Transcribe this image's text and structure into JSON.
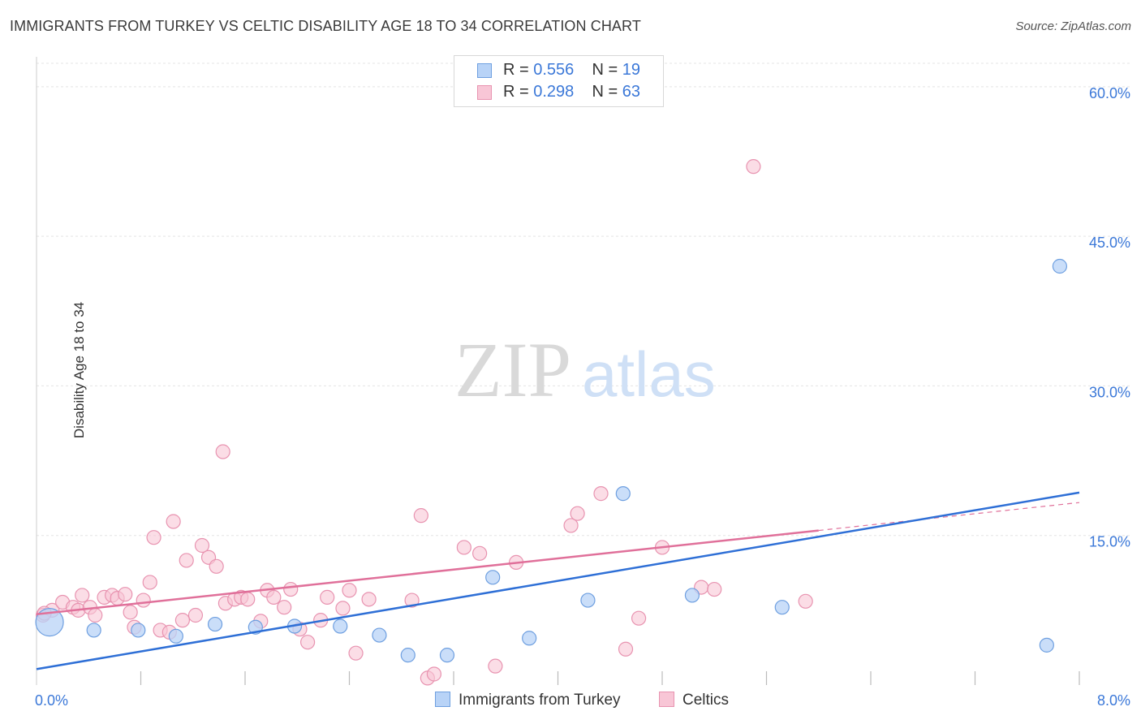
{
  "title": "IMMIGRANTS FROM TURKEY VS CELTIC DISABILITY AGE 18 TO 34 CORRELATION CHART",
  "source": "Source: ZipAtlas.com",
  "watermark": {
    "zip": "ZIP",
    "atlas": "atlas"
  },
  "colors": {
    "turkey_fill": "#b8d3f7",
    "turkey_stroke": "#6e9fe0",
    "turkey_line": "#2e6fd6",
    "celtic_fill": "#f8c6d6",
    "celtic_stroke": "#e893b0",
    "celtic_line": "#e0709a",
    "tick_label": "#3b78d8",
    "grid": "#e4e4e4"
  },
  "legend": {
    "turkey": {
      "r_label": "R = ",
      "r_value": "0.556",
      "n_label": "N = ",
      "n_value": "19"
    },
    "celtic": {
      "r_label": "R = ",
      "r_value": "0.298",
      "n_label": "N = ",
      "n_value": "63"
    }
  },
  "chart_data": {
    "type": "scatter",
    "title": "IMMIGRANTS FROM TURKEY VS CELTIC DISABILITY AGE 18 TO 34 CORRELATION CHART",
    "xlabel": "",
    "ylabel": "Disability Age 18 to 34",
    "xlim": [
      0,
      8
    ],
    "ylim": [
      0,
      63
    ],
    "x_tick_labels": [
      "0.0%",
      "8.0%"
    ],
    "y_ticks": [
      15,
      30,
      45,
      60
    ],
    "y_tick_labels": [
      "15.0%",
      "30.0%",
      "45.0%",
      "60.0%"
    ],
    "grid": "horizontal dashed",
    "legend_position": "top-center",
    "series": [
      {
        "name": "Immigrants from Turkey",
        "points": [
          [
            0.1,
            6.3
          ],
          [
            0.44,
            5.5
          ],
          [
            0.78,
            5.5
          ],
          [
            1.07,
            4.9
          ],
          [
            1.37,
            6.1
          ],
          [
            1.68,
            5.8
          ],
          [
            1.98,
            5.9
          ],
          [
            2.33,
            5.9
          ],
          [
            2.63,
            5.0
          ],
          [
            2.85,
            3.0
          ],
          [
            3.15,
            3.0
          ],
          [
            3.5,
            10.8
          ],
          [
            3.78,
            4.7
          ],
          [
            4.23,
            8.5
          ],
          [
            4.5,
            19.2
          ],
          [
            5.03,
            9.0
          ],
          [
            5.72,
            7.8
          ],
          [
            7.75,
            4.0
          ],
          [
            7.85,
            42.0
          ]
        ],
        "trend": {
          "x0": 0.0,
          "y0": 1.6,
          "x1": 8.0,
          "y1": 19.3
        }
      },
      {
        "name": "Celtics",
        "points": [
          [
            0.05,
            7.0
          ],
          [
            0.12,
            7.5
          ],
          [
            0.2,
            8.3
          ],
          [
            0.28,
            7.8
          ],
          [
            0.32,
            7.5
          ],
          [
            0.35,
            9.0
          ],
          [
            0.41,
            7.8
          ],
          [
            0.45,
            7.0
          ],
          [
            0.52,
            8.8
          ],
          [
            0.58,
            9.0
          ],
          [
            0.62,
            8.7
          ],
          [
            0.68,
            9.1
          ],
          [
            0.72,
            7.3
          ],
          [
            0.75,
            5.8
          ],
          [
            0.82,
            8.5
          ],
          [
            0.87,
            10.3
          ],
          [
            0.9,
            14.8
          ],
          [
            0.95,
            5.5
          ],
          [
            1.02,
            5.3
          ],
          [
            1.05,
            16.4
          ],
          [
            1.12,
            6.5
          ],
          [
            1.15,
            12.5
          ],
          [
            1.22,
            7.0
          ],
          [
            1.27,
            14.0
          ],
          [
            1.32,
            12.8
          ],
          [
            1.38,
            11.9
          ],
          [
            1.43,
            23.4
          ],
          [
            1.45,
            8.2
          ],
          [
            1.52,
            8.6
          ],
          [
            1.57,
            8.8
          ],
          [
            1.62,
            8.6
          ],
          [
            1.72,
            6.4
          ],
          [
            1.77,
            9.5
          ],
          [
            1.82,
            8.8
          ],
          [
            1.9,
            7.8
          ],
          [
            1.95,
            9.6
          ],
          [
            2.02,
            5.6
          ],
          [
            2.08,
            4.3
          ],
          [
            2.18,
            6.5
          ],
          [
            2.23,
            8.8
          ],
          [
            2.35,
            7.7
          ],
          [
            2.4,
            9.5
          ],
          [
            2.45,
            3.2
          ],
          [
            2.55,
            8.6
          ],
          [
            2.88,
            8.5
          ],
          [
            2.95,
            17.0
          ],
          [
            3.0,
            0.7
          ],
          [
            3.05,
            1.1
          ],
          [
            3.28,
            13.8
          ],
          [
            3.4,
            13.2
          ],
          [
            3.52,
            1.9
          ],
          [
            3.68,
            12.3
          ],
          [
            4.1,
            16.0
          ],
          [
            4.15,
            17.2
          ],
          [
            4.33,
            19.2
          ],
          [
            4.52,
            3.6
          ],
          [
            4.62,
            6.7
          ],
          [
            4.8,
            13.8
          ],
          [
            5.1,
            9.8
          ],
          [
            5.2,
            9.6
          ],
          [
            5.5,
            52.0
          ],
          [
            5.9,
            8.4
          ],
          [
            0.06,
            7.2
          ]
        ],
        "trend": {
          "x0": 0.0,
          "y0": 7.1,
          "x1": 6.0,
          "y1": 15.5
        },
        "trend_extension": {
          "x0": 6.0,
          "y0": 15.5,
          "x1": 8.0,
          "y1": 18.3
        }
      }
    ]
  }
}
